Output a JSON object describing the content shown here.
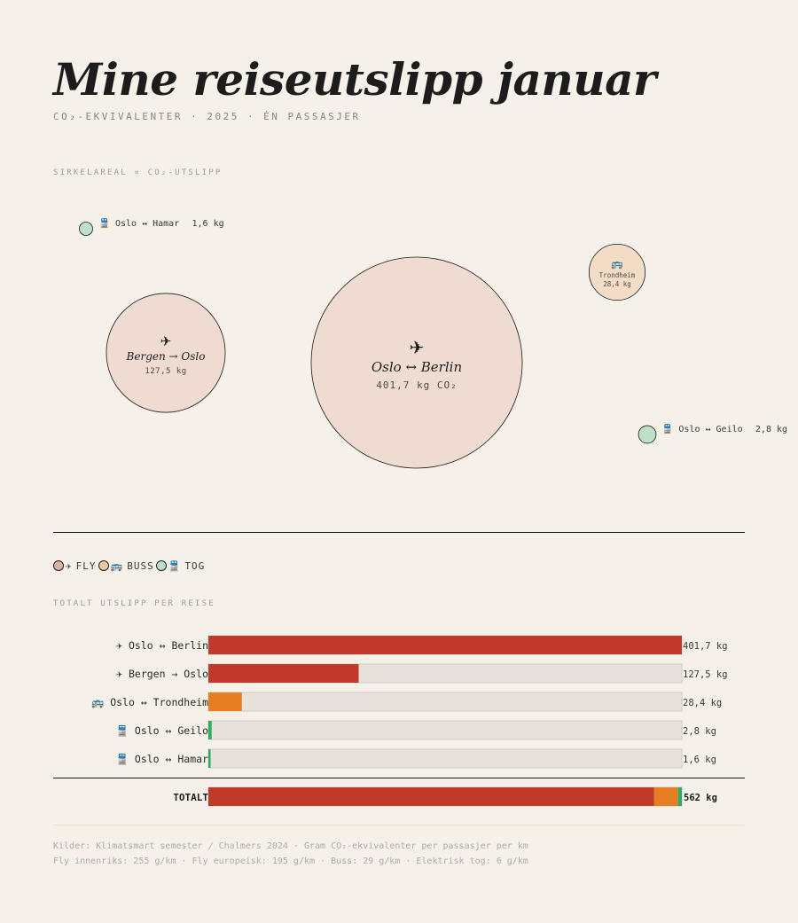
{
  "page": {
    "title": "Mine reiseutslipp januar",
    "subtitle": "CO₂-EKVIVALENTER · 2025 · ÉN PASSASJER",
    "area_caption": "SIRKELAREAL ∝ CO₂-UTSLIPP",
    "bars_caption": "TOTALT UTSLIPP PER REISE",
    "footer": [
      "Kilder: Klimatsmart semester / Chalmers 2024 · Gram CO₂-ekvivalenter per passasjer per km",
      "Fly innenriks: 255 g/km · Fly europeisk: 195 g/km · Buss: 29 g/km · Elektrisk tog: 6 g/km"
    ]
  },
  "colors": {
    "background": "#f5f1e9",
    "fly_bubble": "#f0dbd2",
    "buss_bubble": "#f3dcc5",
    "tog_bubble": "#bfe0c8",
    "fly_bar": "#c0392b",
    "buss_bar": "#e67e22",
    "tog_bar": "#27ae60",
    "track": "#e6e1da"
  },
  "legend": [
    {
      "mode": "fly",
      "icon": "airplane-icon",
      "glyph": "✈",
      "label": "FLY",
      "color": "#ddb3a6"
    },
    {
      "mode": "buss",
      "icon": "bus-icon",
      "glyph": "🚌",
      "label": "BUSS",
      "color": "#ecc8a8"
    },
    {
      "mode": "tog",
      "icon": "train-icon",
      "glyph": "🚆",
      "label": "TOG",
      "color": "#bfe0c8"
    }
  ],
  "bubbles": [
    {
      "route": "Oslo ↔ Berlin",
      "mode": "fly",
      "glyph": "✈",
      "label": "401,7 kg CO₂"
    },
    {
      "route": "Bergen → Oslo",
      "mode": "fly",
      "glyph": "✈",
      "label": "127,5 kg"
    },
    {
      "route": "Trondheim",
      "mode": "buss",
      "glyph": "🚌",
      "label": "28,4 kg"
    },
    {
      "route": "🚆 Oslo ↔ Geilo",
      "mode": "tog",
      "glyph": "",
      "label": "2,8 kg"
    },
    {
      "route": "🚆 Oslo ↔ Hamar",
      "mode": "tog",
      "glyph": "",
      "label": "1,6 kg"
    }
  ],
  "chart_data": {
    "type": "bar",
    "orientation": "horizontal",
    "title": "TOTALT UTSLIPP PER REISE",
    "unit": "kg",
    "categories": [
      "✈ Oslo ↔ Berlin",
      "✈ Bergen → Oslo",
      "🚌 Oslo ↔ Trondheim",
      "🚆 Oslo ↔ Geilo",
      "🚆 Oslo ↔ Hamar"
    ],
    "modes": [
      "fly",
      "fly",
      "buss",
      "tog",
      "tog"
    ],
    "values": [
      401.7,
      127.5,
      28.4,
      2.8,
      1.6
    ],
    "value_labels": [
      "401,7 kg",
      "127,5 kg",
      "28,4 kg",
      "2,8 kg",
      "1,6 kg"
    ],
    "xlim": [
      0,
      401.7
    ],
    "total": {
      "label": "TOTALT",
      "value": 562,
      "value_label": "562 kg",
      "segments": [
        {
          "mode": "fly",
          "value": 529.2
        },
        {
          "mode": "buss",
          "value": 28.4
        },
        {
          "mode": "tog",
          "value": 4.4
        }
      ]
    }
  }
}
